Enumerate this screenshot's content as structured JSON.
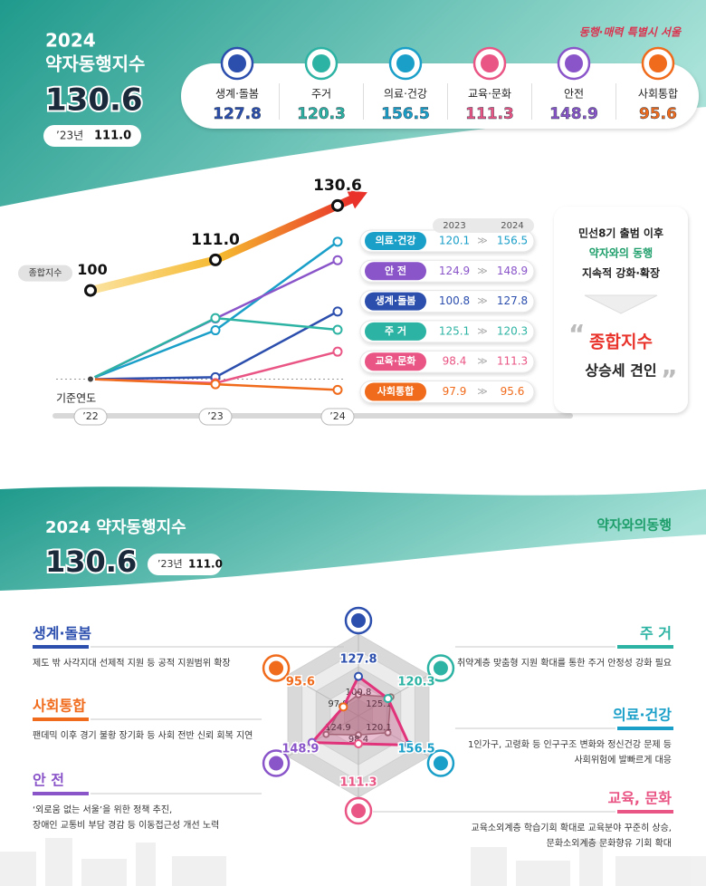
{
  "header": {
    "brand": "동행·매력 특별시 서울",
    "year": "2024",
    "title": "약자동행지수",
    "index": "130.6",
    "prev_label": "’23년",
    "prev_value": "111.0",
    "cards": [
      {
        "name": "생계·돌봄",
        "value": "127.8",
        "color": "#2c4fae"
      },
      {
        "name": "주거",
        "value": "120.3",
        "color": "#2db3a3"
      },
      {
        "name": "의료·건강",
        "value": "156.5",
        "color": "#1a9fc9"
      },
      {
        "name": "교육·문화",
        "value": "111.3",
        "color": "#e95584"
      },
      {
        "name": "안전",
        "value": "148.9",
        "color": "#8a55c9"
      },
      {
        "name": "사회통합",
        "value": "95.6",
        "color": "#f06b1c"
      }
    ]
  },
  "chart_data": [
    {
      "type": "line",
      "x_label": "기준연도",
      "categories": [
        "’22",
        "’23",
        "’24"
      ],
      "columns": [
        "2023",
        "2024"
      ],
      "ylim": [
        92,
        165
      ],
      "y2lim": [
        61,
        125
      ],
      "series": [
        {
          "name": "종합지수",
          "color": "#f5b82e",
          "axis": "y2",
          "values": [
            100,
            111,
            130.6
          ],
          "value_labels": [
            "100",
            "111.0",
            "130.6"
          ]
        },
        {
          "name": "의료·건강",
          "color": "#1a9fc9",
          "values": [
            100,
            120.1,
            156.5
          ]
        },
        {
          "name": "안 전",
          "color": "#8a55c9",
          "values": [
            100,
            124.9,
            148.9
          ]
        },
        {
          "name": "생계·돌봄",
          "color": "#2c4fae",
          "values": [
            100,
            100.8,
            127.8
          ]
        },
        {
          "name": "주 거",
          "color": "#2db3a3",
          "values": [
            100,
            125.1,
            120.3
          ]
        },
        {
          "name": "교육·문화",
          "color": "#e95584",
          "values": [
            100,
            98.4,
            111.3
          ]
        },
        {
          "name": "사회통합",
          "color": "#f06b1c",
          "values": [
            100,
            97.9,
            95.6
          ]
        }
      ]
    },
    {
      "type": "radar",
      "rlim": [
        70,
        190
      ],
      "categories": [
        "생계·돌봄",
        "주 거",
        "의료·건강",
        "교육, 문화",
        "안 전",
        "사회통합"
      ],
      "category_colors": [
        "#2c4fae",
        "#2db3a3",
        "#1a9fc9",
        "#e95584",
        "#8a55c9",
        "#f06b1c"
      ],
      "descriptions": [
        [
          "제도 밖 사각지대 선제적 지원 등 공적 지원범위 확장"
        ],
        [
          "취약계층 맞춤형 지원 확대를 통한 주거 안정성 강화 필요"
        ],
        [
          "1인가구, 고령화 등 인구구조 변화와 정신건강 문제 등",
          "사회위험에 발빠르게 대응"
        ],
        [
          "교육소외계층 학습기회 확대로 교육분야 꾸준히 상승,",
          "문화소외계층 문화향유 기회 확대"
        ],
        [
          "‘외로움 없는 서울’을 위한 정책 추진,",
          "장애인 교통비 부담 경감 등 이동접근성 개선 노력"
        ],
        [
          "팬데믹 이후 경기 불황 장기화 등 사회 전반 신뢰 회복 지연"
        ]
      ],
      "series": [
        {
          "color": "#8f7676",
          "values": [
            100.8,
            125.1,
            120.1,
            98.4,
            124.9,
            97.9
          ]
        },
        {
          "color": "#e0337a",
          "values": [
            127.8,
            120.3,
            156.5,
            111.3,
            148.9,
            95.6
          ]
        }
      ]
    }
  ],
  "summary": {
    "lines": [
      "민선8기 출범 이후",
      "약자와의 동행",
      "지속적 강화·확장"
    ],
    "highlight": "종합지수",
    "conclusion": "상승세 견인"
  },
  "section2": {
    "title": "2024 약자동행지수",
    "index": "130.6",
    "prev_label": "’23년",
    "prev_value": "111.0",
    "logo": "약자와의동행"
  }
}
